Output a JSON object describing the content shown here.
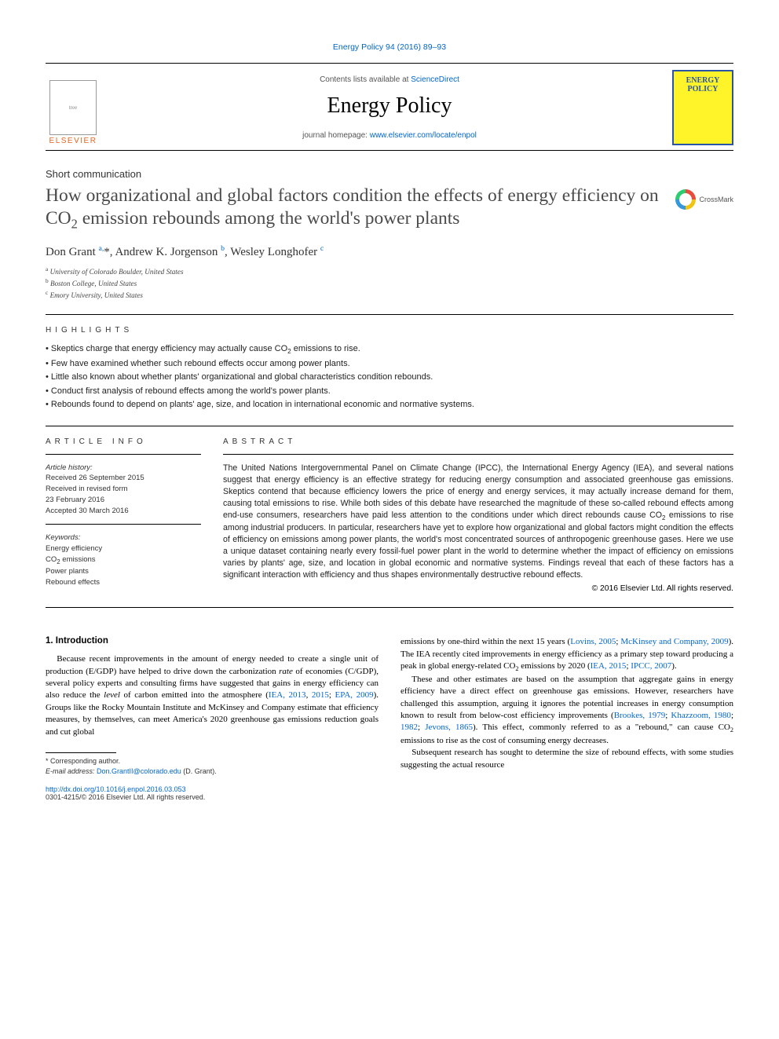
{
  "top_link_text": "Energy Policy 94 (2016) 89–93",
  "masthead": {
    "contents_prefix": "Contents lists available at ",
    "contents_link": "ScienceDirect",
    "journal_name": "Energy Policy",
    "homepage_prefix": "journal homepage: ",
    "homepage_link": "www.elsevier.com/locate/enpol",
    "publisher_name": "ELSEVIER",
    "cover_line1": "ENERGY",
    "cover_line2": "POLICY"
  },
  "article_type": "Short communication",
  "title_html": "How organizational and global factors condition the effects of energy efficiency on CO<sub>2</sub> emission rebounds among the world's power plants",
  "crossmark_label": "CrossMark",
  "authors_html": "Don Grant <sup>a,</sup>*, Andrew K. Jorgenson <sup>b</sup>, Wesley Longhofer <sup>c</sup>",
  "affiliations": [
    {
      "sup": "a",
      "text": "University of Colorado Boulder, United States"
    },
    {
      "sup": "b",
      "text": "Boston College, United States"
    },
    {
      "sup": "c",
      "text": "Emory University, United States"
    }
  ],
  "highlights_heading": "HIGHLIGHTS",
  "highlights": [
    "Skeptics charge that energy efficiency may actually cause CO<sub>2</sub> emissions to rise.",
    "Few have examined whether such rebound effects occur among power plants.",
    "Little also known about whether plants' organizational and global characteristics condition rebounds.",
    "Conduct first analysis of rebound effects among the world's power plants.",
    "Rebounds found to depend on plants' age, size, and location in international economic and normative systems."
  ],
  "article_info_heading": "ARTICLE INFO",
  "history_label": "Article history:",
  "history_lines": [
    "Received 26 September 2015",
    "Received in revised form",
    "23 February 2016",
    "Accepted 30 March 2016"
  ],
  "keywords_label": "Keywords:",
  "keywords": [
    "Energy efficiency",
    "CO<sub>2</sub> emissions",
    "Power plants",
    "Rebound effects"
  ],
  "abstract_heading": "ABSTRACT",
  "abstract_html": "The United Nations Intergovernmental Panel on Climate Change (IPCC), the International Energy Agency (IEA), and several nations suggest that energy efficiency is an effective strategy for reducing energy consumption and associated greenhouse gas emissions. Skeptics contend that because efficiency lowers the price of energy and energy services, it may actually increase demand for them, causing total emissions to rise. While both sides of this debate have researched the magnitude of these so-called rebound effects among end-use consumers, researchers have paid less attention to the conditions under which direct rebounds cause CO<sub>2</sub> emissions to rise among industrial producers. In particular, researchers have yet to explore how organizational and global factors might condition the effects of efficiency on emissions among power plants, the world's most concentrated sources of anthropogenic greenhouse gases. Here we use a unique dataset containing nearly every fossil-fuel power plant in the world to determine whether the impact of efficiency on emissions varies by plants' age, size, and location in global economic and normative systems. Findings reveal that each of these factors has a significant interaction with efficiency and thus shapes environmentally destructive rebound effects.",
  "abstract_copyright": "© 2016 Elsevier Ltd. All rights reserved.",
  "intro_heading": "1. Introduction",
  "body": {
    "col1_p1": "Because recent improvements in the amount of energy needed to create a single unit of production (E/GDP) have helped to drive down the carbonization <em>rate</em> of economies (C/GDP), several policy experts and consulting firms have suggested that gains in energy efficiency can also reduce the <em>level</em> of carbon emitted into the atmosphere (<a>IEA, 2013</a>, <a>2015</a>; <a>EPA, 2009</a>). Groups like the Rocky Mountain Institute and McKinsey and Company estimate that efficiency measures, by themselves, can meet America's 2020 greenhouse gas emissions reduction goals and cut global",
    "col2_p1": "emissions by one-third within the next 15 years (<a>Lovins, 2005</a>; <a>McKinsey and Company, 2009</a>). The IEA recently cited improvements in energy efficiency as a primary step toward producing a peak in global energy-related CO<sub>2</sub> emissions by 2020 (<a>IEA, 2015</a>; <a>IPCC, 2007</a>).",
    "col2_p2": "These and other estimates are based on the assumption that aggregate gains in energy efficiency have a direct effect on greenhouse gas emissions. However, researchers have challenged this assumption, arguing it ignores the potential increases in energy consumption known to result from below-cost efficiency improvements (<a>Brookes, 1979</a>; <a>Khazzoom, 1980</a>; <a>1982</a>; <a>Jevons, 1865</a>). This effect, commonly referred to as a \"rebound,\" can cause CO<sub>2</sub> emissions to rise as the cost of consuming energy decreases.",
    "col2_p3": "Subsequent research has sought to determine the size of rebound effects, with some studies suggesting the actual resource"
  },
  "footnotes": {
    "corresponding": "* Corresponding author.",
    "email_label": "E-mail address: ",
    "email": "Don.GrantII@colorado.edu",
    "email_suffix": " (D. Grant)."
  },
  "footer": {
    "doi": "http://dx.doi.org/10.1016/j.enpol.2016.03.053",
    "issn_line": "0301-4215/© 2016 Elsevier Ltd. All rights reserved."
  },
  "colors": {
    "link": "#0066cc",
    "elsevier_orange": "#e5641f",
    "cover_bg": "#fff42a",
    "cover_border": "#2a55a5"
  }
}
